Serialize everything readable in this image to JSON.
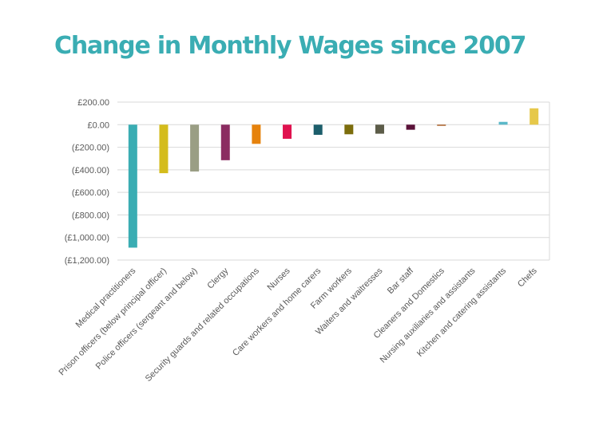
{
  "title": "Change in Monthly Wages since 2007",
  "colors": {
    "title": "#3aadb3",
    "grid": "#d9d9d9",
    "text": "#595959"
  },
  "chart_data": {
    "type": "bar",
    "title": "Change in Monthly Wages since 2007",
    "xlabel": "",
    "ylabel": "",
    "ylim": [
      -1200,
      200
    ],
    "yticks": [
      200,
      0,
      -200,
      -400,
      -600,
      -800,
      -1000,
      -1200
    ],
    "ytick_labels": [
      "£200.00",
      "£0.00",
      "(£200.00)",
      "(£400.00)",
      "(£600.00)",
      "(£800.00)",
      "(£1,000.00)",
      "(£1,200.00)"
    ],
    "grid": true,
    "legend": "none",
    "categories": [
      "Medical practitioners",
      "Prison officers (below principal officer)",
      "Police officers (sergeant and below)",
      "Clergy",
      "Security guards and related occupations",
      "Nurses",
      "Care workers and home carers",
      "Farm workers",
      "Waiters and waitresses",
      "Bar staff",
      "Cleaners and Domestics",
      "Nursing auxiliaries and assistants",
      "Kitchen and catering assistants",
      "Chefs"
    ],
    "values": [
      -1090,
      -430,
      -415,
      -315,
      -170,
      -125,
      -90,
      -85,
      -80,
      -45,
      -10,
      0,
      25,
      145
    ],
    "bar_colors": [
      "#3aadb3",
      "#d4bc1c",
      "#9a9e84",
      "#8b2c61",
      "#e6820c",
      "#e0124f",
      "#1c5e6b",
      "#7c6d0c",
      "#5c5c48",
      "#5a1238",
      "#a85a1f",
      "#4a4a4a",
      "#5bb8c9",
      "#e6c84a"
    ]
  }
}
